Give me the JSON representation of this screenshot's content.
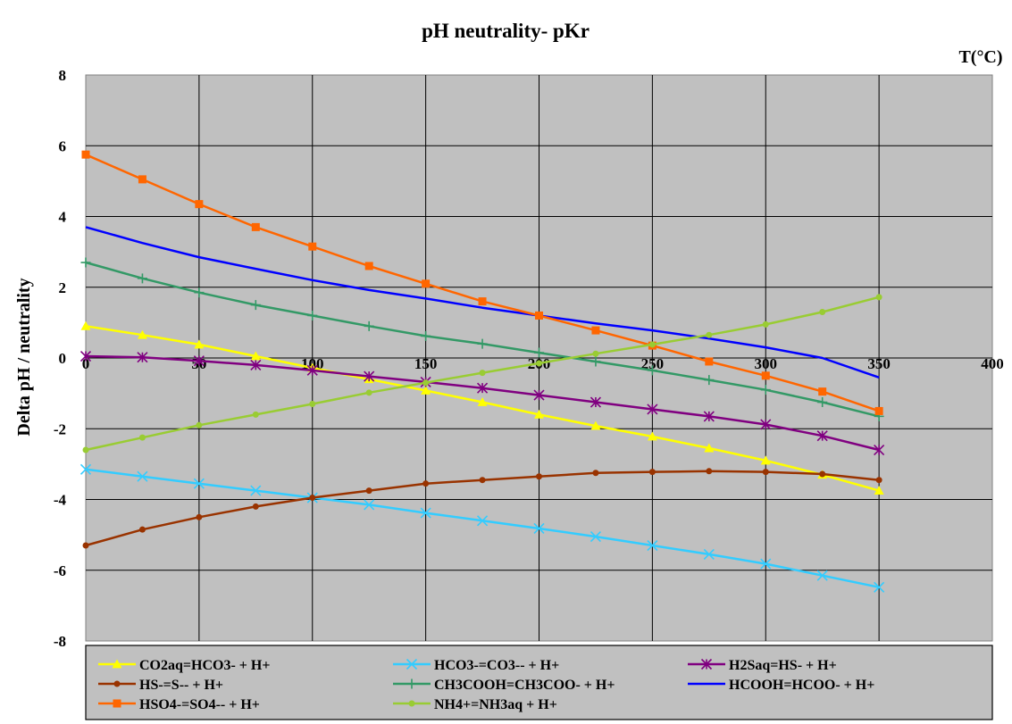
{
  "chart_data": {
    "type": "line",
    "title": "pH neutrality- pKr",
    "xlabel": "T(°C)",
    "ylabel": "Delta pH / neutrality",
    "xlim": [
      0,
      400
    ],
    "ylim": [
      -8,
      8
    ],
    "x_ticks": [
      "0",
      "50",
      "100",
      "150",
      "200",
      "250",
      "300",
      "350",
      "400"
    ],
    "y_ticks": [
      "8",
      "6",
      "4",
      "2",
      "0",
      "-2",
      "-4",
      "-6",
      "-8"
    ],
    "grid": true,
    "legend_position": "bottom",
    "x": [
      0,
      25,
      50,
      75,
      100,
      125,
      150,
      175,
      200,
      225,
      250,
      275,
      300,
      325,
      350
    ],
    "series": [
      {
        "name": "CO2aq=HCO3- + H+",
        "color": "#ffff00",
        "marker": "triangle",
        "values": [
          0.9,
          0.65,
          0.38,
          0.05,
          -0.28,
          -0.6,
          -0.92,
          -1.25,
          -1.6,
          -1.92,
          -2.22,
          -2.55,
          -2.9,
          -3.3,
          -3.75
        ]
      },
      {
        "name": "HCO3-=CO3-- + H+",
        "color": "#33ccff",
        "marker": "x",
        "values": [
          -3.15,
          -3.35,
          -3.55,
          -3.75,
          -3.95,
          -4.15,
          -4.38,
          -4.6,
          -4.82,
          -5.05,
          -5.3,
          -5.55,
          -5.82,
          -6.15,
          -6.48
        ]
      },
      {
        "name": "H2Saq=HS- + H+",
        "color": "#800080",
        "marker": "star",
        "values": [
          0.05,
          0.02,
          -0.08,
          -0.2,
          -0.35,
          -0.52,
          -0.68,
          -0.85,
          -1.05,
          -1.25,
          -1.45,
          -1.65,
          -1.88,
          -2.2,
          -2.6
        ]
      },
      {
        "name": "HS-=S-- + H+",
        "color": "#993300",
        "marker": "dot",
        "values": [
          -5.3,
          -4.85,
          -4.5,
          -4.2,
          -3.95,
          -3.75,
          -3.55,
          -3.45,
          -3.35,
          -3.25,
          -3.22,
          -3.2,
          -3.22,
          -3.28,
          -3.45
        ]
      },
      {
        "name": "CH3COOH=CH3COO- + H+",
        "color": "#339966",
        "marker": "plus",
        "values": [
          2.7,
          2.25,
          1.85,
          1.5,
          1.2,
          0.9,
          0.62,
          0.4,
          0.15,
          -0.1,
          -0.35,
          -0.62,
          -0.9,
          -1.25,
          -1.65
        ]
      },
      {
        "name": "HCOOH=HCOO- + H+",
        "color": "#0000ff",
        "marker": "none",
        "values": [
          3.7,
          3.25,
          2.85,
          2.52,
          2.2,
          1.92,
          1.68,
          1.42,
          1.2,
          0.98,
          0.78,
          0.55,
          0.3,
          0.0,
          -0.55
        ]
      },
      {
        "name": "HSO4-=SO4-- + H+",
        "color": "#ff6600",
        "marker": "square",
        "values": [
          5.75,
          5.05,
          4.35,
          3.7,
          3.15,
          2.6,
          2.1,
          1.6,
          1.2,
          0.78,
          0.35,
          -0.1,
          -0.5,
          -0.95,
          -1.5
        ]
      },
      {
        "name": "NH4+=NH3aq + H+",
        "color": "#99cc33",
        "marker": "dot",
        "values": [
          -2.6,
          -2.25,
          -1.9,
          -1.6,
          -1.3,
          -0.98,
          -0.7,
          -0.42,
          -0.15,
          0.12,
          0.38,
          0.65,
          0.95,
          1.3,
          1.72
        ]
      }
    ]
  }
}
